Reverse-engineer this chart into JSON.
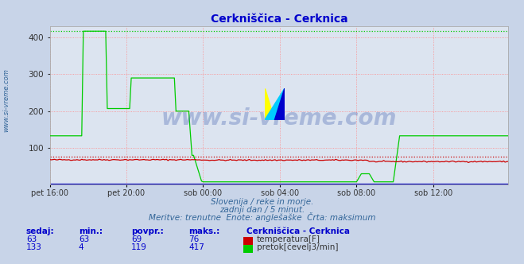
{
  "title": "Cerkniščica - Cerknica",
  "title_color": "#0000cc",
  "bg_color": "#c8d4e8",
  "plot_bg_color": "#dce4f0",
  "grid_color": "#ff8888",
  "x_tick_labels": [
    "pet 16:00",
    "pet 20:00",
    "sob 00:00",
    "sob 04:00",
    "sob 08:00",
    "sob 12:00"
  ],
  "x_tick_positions": [
    0,
    48,
    96,
    144,
    192,
    240
  ],
  "total_points": 288,
  "ylim": [
    0,
    430
  ],
  "yticks": [
    100,
    200,
    300,
    400
  ],
  "temp_color": "#cc0000",
  "flow_color": "#00cc00",
  "height_color": "#0000bb",
  "max_temp": 76,
  "max_flow": 417,
  "watermark": "www.si-vreme.com",
  "watermark_color": "#3355aa",
  "watermark_alpha": 0.3,
  "footer_line1": "Slovenija / reke in morje.",
  "footer_line2": "zadnji dan / 5 minut.",
  "footer_line3": "Meritve: trenutne  Enote: anglešaške  Črta: maksimum",
  "footer_color": "#336699",
  "legend_title": "Cerkniščica - Cerknica",
  "legend_color": "#0000cc",
  "label_temp": "temperatura[F]",
  "label_flow": "pretok[čevelj3/min]",
  "sedaj_temp": 63,
  "min_temp": 63,
  "povpr_temp": 69,
  "maks_temp": 76,
  "sedaj_flow": 133,
  "min_flow": 4,
  "povpr_flow": 119,
  "maks_flow": 417,
  "sidebar_text": "www.si-vreme.com",
  "sidebar_color": "#336699"
}
